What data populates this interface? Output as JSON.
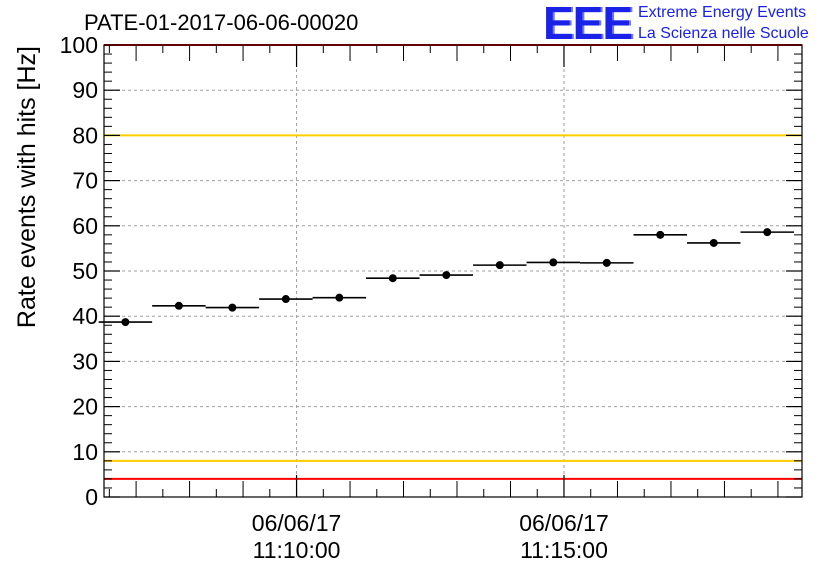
{
  "header": {
    "run_title": "PATE-01-2017-06-06-00020",
    "logo_mark": "EEE",
    "logo_line1": "Extreme Energy Events",
    "logo_line2": "La Scienza nelle Scuole"
  },
  "chart_data": {
    "type": "scatter",
    "title": "PATE-01-2017-06-06-00020",
    "ylabel": "Rate events with hits [Hz]",
    "xlabel": "",
    "ylim": [
      0,
      100
    ],
    "yticks": [
      0,
      10,
      20,
      30,
      40,
      50,
      60,
      70,
      80,
      90,
      100
    ],
    "xlim": [
      "2017-06-06 11:06:24",
      "2017-06-06 11:19:27"
    ],
    "xtick_labels": [
      {
        "x": "2017-06-06 11:10:00",
        "date": "06/06/17",
        "time": "11:10:00"
      },
      {
        "x": "2017-06-06 11:15:00",
        "date": "06/06/17",
        "time": "11:15:00"
      }
    ],
    "grid": true,
    "x": [
      "11:06:48",
      "11:07:48",
      "11:08:48",
      "11:09:48",
      "11:10:48",
      "11:11:48",
      "11:12:48",
      "11:13:48",
      "11:14:48",
      "11:15:48",
      "11:16:48",
      "11:17:48",
      "11:18:48"
    ],
    "x_bin_halfwidth_seconds": 30,
    "values": [
      38.7,
      42.3,
      41.9,
      43.8,
      44.1,
      48.4,
      49.1,
      51.3,
      51.9,
      51.8,
      58.0,
      56.2,
      58.6
    ],
    "reference_lines": [
      {
        "y": 100,
        "color": "#ff0000"
      },
      {
        "y": 80,
        "color": "#ffcc00"
      },
      {
        "y": 8,
        "color": "#ffcc00"
      },
      {
        "y": 4,
        "color": "#ff0000"
      }
    ],
    "colors": {
      "points": "#000000",
      "warning": "#ffcc00",
      "alarm": "#ff0000"
    }
  }
}
